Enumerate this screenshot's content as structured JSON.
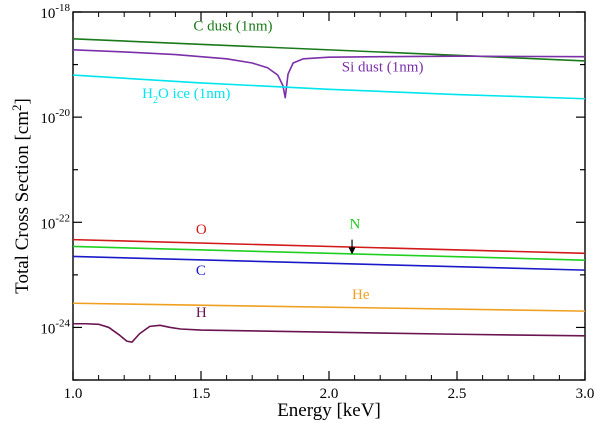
{
  "chart_data": {
    "type": "line",
    "xlabel": "Energy [keV]",
    "ylabel": "Total Cross Section [cm",
    "ylabel_sup": "2",
    "ylabel_close": "]",
    "xlim": [
      1.0,
      3.0
    ],
    "ylim_log10": [
      -25,
      -18
    ],
    "x_ticks": [
      {
        "value": 1.0,
        "label": "1.0"
      },
      {
        "value": 1.5,
        "label": "1.5"
      },
      {
        "value": 2.0,
        "label": "2.0"
      },
      {
        "value": 2.5,
        "label": "2.5"
      },
      {
        "value": 3.0,
        "label": "3.0"
      }
    ],
    "y_ticks": [
      {
        "value": -18,
        "base": "10",
        "exp": "-18"
      },
      {
        "value": -20,
        "base": "10",
        "exp": "-20"
      },
      {
        "value": -22,
        "base": "10",
        "exp": "-22"
      },
      {
        "value": -24,
        "base": "10",
        "exp": "-24"
      }
    ],
    "series": [
      {
        "name": "C dust",
        "color": "#1a7a1a",
        "x": [
          1.0,
          3.0
        ],
        "log10_y": [
          -18.51,
          -18.93
        ]
      },
      {
        "name": "Si dust",
        "color": "#7b2fa8",
        "x": [
          1.0,
          1.2,
          1.4,
          1.6,
          1.7,
          1.76,
          1.8,
          1.82,
          1.829,
          1.84,
          1.86,
          1.9,
          2.0,
          2.2,
          2.5,
          3.0
        ],
        "log10_y": [
          -18.72,
          -18.76,
          -18.81,
          -18.89,
          -18.97,
          -19.06,
          -19.2,
          -19.4,
          -19.63,
          -19.18,
          -18.97,
          -18.89,
          -18.86,
          -18.85,
          -18.84,
          -18.85
        ]
      },
      {
        "name": "H2O ice",
        "color": "#00e5ee",
        "x": [
          1.0,
          1.5,
          2.0,
          2.5,
          3.0
        ],
        "log10_y": [
          -19.2,
          -19.35,
          -19.47,
          -19.57,
          -19.65
        ]
      },
      {
        "name": "O",
        "color": "#d11a1a",
        "x": [
          1.0,
          3.0
        ],
        "log10_y": [
          -22.33,
          -22.59
        ]
      },
      {
        "name": "N",
        "color": "#20d020",
        "x": [
          1.0,
          3.0
        ],
        "log10_y": [
          -22.46,
          -22.72
        ]
      },
      {
        "name": "C",
        "color": "#1a1ac8",
        "x": [
          1.0,
          3.0
        ],
        "log10_y": [
          -22.65,
          -22.91
        ]
      },
      {
        "name": "He",
        "color": "#f0a020",
        "x": [
          1.0,
          3.0
        ],
        "log10_y": [
          -23.54,
          -23.69
        ]
      },
      {
        "name": "H",
        "color": "#6a1450",
        "x": [
          1.0,
          1.05,
          1.1,
          1.14,
          1.18,
          1.21,
          1.23,
          1.26,
          1.3,
          1.34,
          1.38,
          1.42,
          1.5,
          2.0,
          2.5,
          3.0
        ],
        "log10_y": [
          -23.93,
          -23.93,
          -23.94,
          -24.0,
          -24.14,
          -24.26,
          -24.28,
          -24.12,
          -23.98,
          -23.96,
          -24.0,
          -24.03,
          -24.05,
          -24.09,
          -24.13,
          -24.16
        ]
      }
    ],
    "labels": [
      {
        "series": "C dust",
        "text": "C dust (1nm)",
        "x": 1.47,
        "log10_y": -18.35
      },
      {
        "series": "Si dust",
        "text": "Si dust (1nm)",
        "x": 2.05,
        "log10_y": -19.13
      },
      {
        "series": "H2O ice",
        "text": "H",
        "sub": "2",
        "tail": "O ice (1nm)",
        "x": 1.27,
        "log10_y": -19.64
      },
      {
        "series": "O",
        "text": "O",
        "x": 1.48,
        "log10_y": -22.22
      },
      {
        "series": "N",
        "text": "N",
        "x": 2.08,
        "log10_y": -22.12
      },
      {
        "series": "C",
        "text": "C",
        "x": 1.48,
        "log10_y": -23.0
      },
      {
        "series": "He",
        "text": "He",
        "x": 2.09,
        "log10_y": -23.46
      },
      {
        "series": "H",
        "text": "H",
        "x": 1.48,
        "log10_y": -23.8
      }
    ],
    "annotations": [
      {
        "type": "arrow",
        "target": "N",
        "x": 2.09,
        "from_log10_y": -22.33,
        "to_log10_y": -22.61
      }
    ]
  }
}
